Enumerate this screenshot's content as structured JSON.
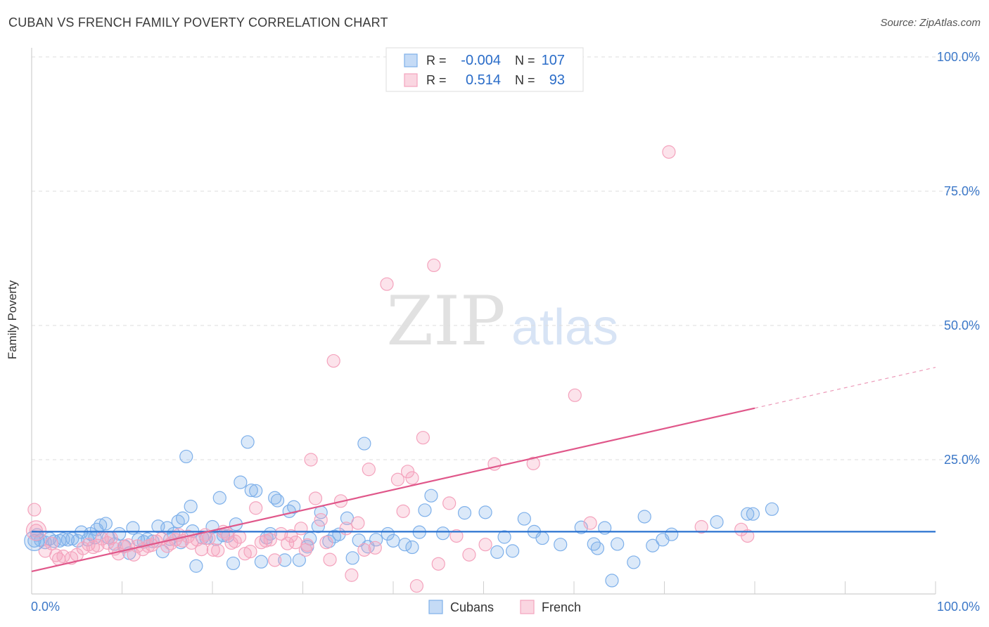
{
  "title": "CUBAN VS FRENCH FAMILY POVERTY CORRELATION CHART",
  "source": "Source: ZipAtlas.com",
  "watermark": {
    "zip": "ZIP",
    "atlas": "atlas"
  },
  "chart_data": {
    "type": "scatter",
    "xlabel": "",
    "ylabel": "Family Poverty",
    "xlim": [
      0,
      100
    ],
    "ylim": [
      0,
      100
    ],
    "x_tick_labels": [
      "0.0%",
      "100.0%"
    ],
    "y_ticks": [
      25,
      50,
      75,
      100
    ],
    "y_tick_labels": [
      "25.0%",
      "50.0%",
      "75.0%",
      "100.0%"
    ],
    "grid": true,
    "legend_position": "bottom-center",
    "stats_box": {
      "rows": [
        {
          "r_label": "R =",
          "r_value": "-0.004",
          "n_label": "N =",
          "n_value": "107"
        },
        {
          "r_label": "R =",
          "r_value": "0.514",
          "n_label": "N =",
          "n_value": "93"
        }
      ]
    },
    "series": [
      {
        "name": "Cubans",
        "color": "#7eb0ea",
        "line_color": "#2a72d0",
        "trend": {
          "intercept": 11.6,
          "slope": 0.0,
          "x_solid_end": 100
        },
        "points": [
          [
            0.3,
            9.9
          ],
          [
            0.6,
            11
          ],
          [
            1,
            10
          ],
          [
            1.5,
            9.6
          ],
          [
            2,
            10.3
          ],
          [
            2.5,
            9.8
          ],
          [
            3.1,
            9.9
          ],
          [
            3.5,
            10.2
          ],
          [
            4,
            10.1
          ],
          [
            4.5,
            10.3
          ],
          [
            5.1,
            9.9
          ],
          [
            5.5,
            11.5
          ],
          [
            6.2,
            10.1
          ],
          [
            6.5,
            11.2
          ],
          [
            7,
            10.5
          ],
          [
            7.2,
            12
          ],
          [
            7.6,
            12.8
          ],
          [
            8.2,
            13.1
          ],
          [
            8.5,
            10.5
          ],
          [
            9.2,
            9.3
          ],
          [
            9.7,
            11.2
          ],
          [
            10.3,
            8.9
          ],
          [
            10.8,
            7.6
          ],
          [
            11.2,
            12.3
          ],
          [
            11.8,
            10.1
          ],
          [
            12.4,
            9.7
          ],
          [
            12.8,
            10.2
          ],
          [
            13.4,
            9.8
          ],
          [
            14,
            12.6
          ],
          [
            14.5,
            7.9
          ],
          [
            15,
            12.3
          ],
          [
            15.3,
            10.2
          ],
          [
            15.7,
            11.2
          ],
          [
            16.2,
            13.5
          ],
          [
            16.5,
            9.6
          ],
          [
            16.7,
            14.1
          ],
          [
            17.1,
            25.6
          ],
          [
            17.6,
            16.3
          ],
          [
            17.8,
            11.7
          ],
          [
            18.2,
            5.2
          ],
          [
            18.9,
            10.5
          ],
          [
            19.3,
            10.4
          ],
          [
            20,
            12.5
          ],
          [
            20.4,
            10.2
          ],
          [
            20.8,
            17.9
          ],
          [
            21.2,
            10.9
          ],
          [
            21.7,
            10.8
          ],
          [
            22.3,
            5.7
          ],
          [
            22.6,
            13
          ],
          [
            23.1,
            20.8
          ],
          [
            23.9,
            28.3
          ],
          [
            24.3,
            19.3
          ],
          [
            24.8,
            19.2
          ],
          [
            25.4,
            6
          ],
          [
            26,
            10.5
          ],
          [
            26.4,
            11.2
          ],
          [
            26.9,
            17.9
          ],
          [
            27.2,
            17.4
          ],
          [
            28,
            6.3
          ],
          [
            28.5,
            15.4
          ],
          [
            29,
            16.2
          ],
          [
            29.6,
            6.3
          ],
          [
            30.5,
            8.8
          ],
          [
            30.8,
            10.3
          ],
          [
            31.7,
            12.6
          ],
          [
            32,
            15.2
          ],
          [
            32.9,
            9.8
          ],
          [
            33.5,
            10.7
          ],
          [
            34,
            11.1
          ],
          [
            34.9,
            14.1
          ],
          [
            35.5,
            6.7
          ],
          [
            36.2,
            10
          ],
          [
            36.8,
            28
          ],
          [
            37.2,
            8.8
          ],
          [
            38.1,
            10.1
          ],
          [
            39.4,
            11.2
          ],
          [
            40,
            9.9
          ],
          [
            41.3,
            9.2
          ],
          [
            42.1,
            8.7
          ],
          [
            42.9,
            11.5
          ],
          [
            43.5,
            15.6
          ],
          [
            44.2,
            18.3
          ],
          [
            45.5,
            11.3
          ],
          [
            47.9,
            15.1
          ],
          [
            50.2,
            15.2
          ],
          [
            51.5,
            7.8
          ],
          [
            52.3,
            10.6
          ],
          [
            53.2,
            8
          ],
          [
            54.5,
            14
          ],
          [
            55.6,
            11.6
          ],
          [
            56.5,
            10.4
          ],
          [
            58.5,
            9.2
          ],
          [
            60.8,
            12.4
          ],
          [
            62.2,
            9.3
          ],
          [
            62.6,
            8.5
          ],
          [
            63.4,
            12.3
          ],
          [
            64.2,
            2.5
          ],
          [
            64.8,
            9.3
          ],
          [
            66.6,
            5.9
          ],
          [
            67.8,
            14.4
          ],
          [
            68.7,
            9
          ],
          [
            69.8,
            10.1
          ],
          [
            70.8,
            11.1
          ],
          [
            75.8,
            13.4
          ],
          [
            79.2,
            14.9
          ],
          [
            79.8,
            14.9
          ],
          [
            81.9,
            15.8
          ]
        ]
      },
      {
        "name": "French",
        "color": "#f4a3bd",
        "line_color": "#e0578a",
        "trend": {
          "intercept": 4.2,
          "slope": 0.38,
          "x_solid_end": 80
        },
        "points": [
          [
            0.3,
            15.7
          ],
          [
            0.5,
            11.8
          ],
          [
            1.5,
            8
          ],
          [
            2.2,
            9.4
          ],
          [
            2.7,
            7.2
          ],
          [
            3,
            6.5
          ],
          [
            3.5,
            7
          ],
          [
            4.4,
            6.7
          ],
          [
            5,
            7.3
          ],
          [
            5.7,
            8.5
          ],
          [
            6.3,
            9.2
          ],
          [
            6.8,
            8.7
          ],
          [
            7.3,
            9
          ],
          [
            7.8,
            10.3
          ],
          [
            8.4,
            9.5
          ],
          [
            8.8,
            10.4
          ],
          [
            9.2,
            8.4
          ],
          [
            9.6,
            7.5
          ],
          [
            10.2,
            8.8
          ],
          [
            10.7,
            9.1
          ],
          [
            11.3,
            7.3
          ],
          [
            11.7,
            8.9
          ],
          [
            12.3,
            8.3
          ],
          [
            12.9,
            8.9
          ],
          [
            13.3,
            9.1
          ],
          [
            13.8,
            9.8
          ],
          [
            14.4,
            10.3
          ],
          [
            15,
            8.9
          ],
          [
            15.4,
            9.4
          ],
          [
            15.9,
            10.1
          ],
          [
            16.3,
            11
          ],
          [
            16.7,
            9.9
          ],
          [
            17.3,
            10.7
          ],
          [
            17.7,
            9.5
          ],
          [
            18.3,
            10.1
          ],
          [
            18.8,
            8.3
          ],
          [
            19.2,
            11
          ],
          [
            19.6,
            10.4
          ],
          [
            20.1,
            8.2
          ],
          [
            20.6,
            8.1
          ],
          [
            21.2,
            11.6
          ],
          [
            21.6,
            11.2
          ],
          [
            22.1,
            9.5
          ],
          [
            22.5,
            9.8
          ],
          [
            23,
            10.6
          ],
          [
            23.6,
            7.5
          ],
          [
            24.2,
            7.9
          ],
          [
            24.8,
            16
          ],
          [
            25.4,
            9.6
          ],
          [
            25.9,
            9.9
          ],
          [
            26.4,
            10.1
          ],
          [
            26.9,
            6.3
          ],
          [
            27.6,
            11.2
          ],
          [
            28.3,
            9.4
          ],
          [
            28.7,
            10.8
          ],
          [
            29.2,
            9.6
          ],
          [
            29.8,
            12.2
          ],
          [
            30.3,
            8.2
          ],
          [
            30.9,
            25
          ],
          [
            31.4,
            17.8
          ],
          [
            32,
            13.8
          ],
          [
            32.6,
            9.6
          ],
          [
            33,
            6.4
          ],
          [
            33.4,
            43.4
          ],
          [
            34.2,
            17.3
          ],
          [
            34.8,
            12.2
          ],
          [
            35.4,
            3.5
          ],
          [
            36.1,
            13.2
          ],
          [
            36.8,
            8.2
          ],
          [
            37.3,
            23.2
          ],
          [
            38,
            8.6
          ],
          [
            39.3,
            57.7
          ],
          [
            40.5,
            21.3
          ],
          [
            41.1,
            15.4
          ],
          [
            41.6,
            22.8
          ],
          [
            42.1,
            21.6
          ],
          [
            42.6,
            1.5
          ],
          [
            43.3,
            29.1
          ],
          [
            44.5,
            61.2
          ],
          [
            45,
            5.6
          ],
          [
            46.2,
            16.9
          ],
          [
            48.4,
            7.3
          ],
          [
            50.2,
            9.2
          ],
          [
            51.2,
            24.2
          ],
          [
            55.5,
            24.3
          ],
          [
            60.1,
            37
          ],
          [
            70.5,
            82.3
          ],
          [
            74.1,
            12.5
          ],
          [
            78.5,
            12
          ],
          [
            79.2,
            10.8
          ],
          [
            61.8,
            13.2
          ],
          [
            30.5,
            9.1
          ],
          [
            47,
            10.8
          ]
        ]
      }
    ]
  }
}
